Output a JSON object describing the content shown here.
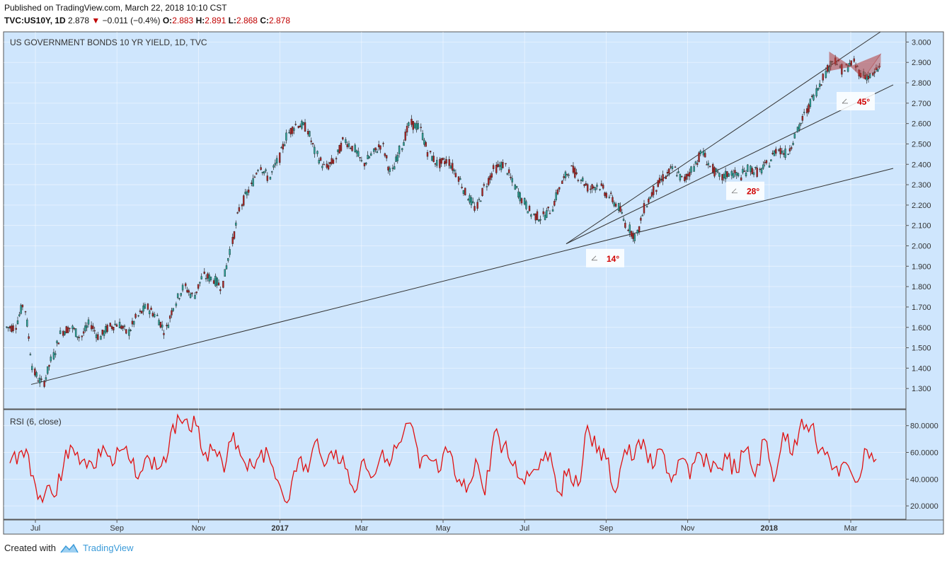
{
  "header": {
    "published": "Published on TradingView.com, March 22, 2018 10:10 CST",
    "symbol": "TVC:US10Y, 1D",
    "last": "2.878",
    "change": "−0.011 (−0.4%)",
    "o_label": "O:",
    "o_val": "2.883",
    "h_label": "H:",
    "h_val": "2.891",
    "l_label": "L:",
    "l_val": "2.868",
    "c_label": "C:",
    "c_val": "2.878"
  },
  "footer": {
    "created_with": "Created with",
    "brand": "TradingView"
  },
  "colors": {
    "background": "#cfe6fd",
    "up": "#26a69a",
    "down": "#b22222",
    "rsi": "#e01010",
    "pattern": "#b23a3a"
  },
  "chart_data": [
    {
      "type": "candlestick",
      "title": "US GOVERNMENT BONDS 10 YR YIELD, 1D, TVC",
      "ylim": [
        1.2,
        3.05
      ],
      "yticks": [
        "3.000",
        "2.900",
        "2.800",
        "2.700",
        "2.600",
        "2.500",
        "2.400",
        "2.300",
        "2.200",
        "2.100",
        "2.000",
        "1.900",
        "1.800",
        "1.700",
        "1.600",
        "1.500",
        "1.400",
        "1.300"
      ],
      "x_tick_labels": [
        "Jul",
        "Sep",
        "Nov",
        "2017",
        "Mar",
        "May",
        "Jul",
        "Sep",
        "Nov",
        "2018",
        "Mar"
      ],
      "grid": true,
      "series": [
        {
          "values": [
            1.6,
            1.72,
            1.38,
            1.32,
            1.45,
            1.58,
            1.6,
            1.55,
            1.62,
            1.55,
            1.6,
            1.62,
            1.57,
            1.65,
            1.7,
            1.66,
            1.58,
            1.72,
            1.8,
            1.75,
            1.85,
            1.84,
            1.8,
            2.0,
            2.2,
            2.28,
            2.4,
            2.33,
            2.42,
            2.55,
            2.6,
            2.58,
            2.45,
            2.38,
            2.42,
            2.52,
            2.48,
            2.4,
            2.45,
            2.5,
            2.35,
            2.48,
            2.6,
            2.58,
            2.45,
            2.4,
            2.42,
            2.35,
            2.25,
            2.18,
            2.3,
            2.38,
            2.4,
            2.3,
            2.22,
            2.15,
            2.14,
            2.18,
            2.3,
            2.38,
            2.34,
            2.28,
            2.3,
            2.25,
            2.2,
            2.1,
            2.04,
            2.2,
            2.28,
            2.34,
            2.38,
            2.32,
            2.38,
            2.46,
            2.38,
            2.33,
            2.36,
            2.34,
            2.38,
            2.36,
            2.4,
            2.48,
            2.45,
            2.55,
            2.65,
            2.75,
            2.84,
            2.92,
            2.86,
            2.9,
            2.84,
            2.83,
            2.88
          ]
        }
      ],
      "annotations": [
        {
          "type": "trendline",
          "label": "14°",
          "from": {
            "t": 3,
            "v": 1.32
          },
          "to": {
            "t": 104.5,
            "v": 2.38
          }
        },
        {
          "type": "trendline",
          "label": "28°",
          "from": {
            "t": 66,
            "v": 2.01
          },
          "to": {
            "t": 104.5,
            "v": 2.79
          }
        },
        {
          "type": "trendline",
          "label": "45°",
          "from": {
            "t": 66,
            "v": 2.01
          },
          "to": {
            "t": 103,
            "v": 3.05
          }
        },
        {
          "type": "pattern",
          "name": "broadening wedge"
        }
      ]
    },
    {
      "type": "line",
      "title": "RSI (6, close)",
      "ylim": [
        10,
        92
      ],
      "yticks": [
        "80.0000",
        "60.0000",
        "40.0000",
        "20.0000"
      ],
      "series": [
        {
          "values": [
            52,
            60,
            58,
            25,
            35,
            28,
            62,
            58,
            55,
            48,
            65,
            50,
            62,
            52,
            45,
            55,
            48,
            60,
            88,
            85,
            80,
            60,
            62,
            45,
            75,
            55,
            50,
            62,
            52,
            35,
            25,
            55,
            45,
            70,
            52,
            62,
            48,
            30,
            55,
            42,
            62,
            55,
            68,
            82,
            48,
            55,
            45,
            60,
            38,
            30,
            55,
            28,
            75,
            65,
            50,
            40,
            45,
            55,
            60,
            30,
            48,
            35,
            80,
            60,
            55,
            30,
            62,
            55,
            70,
            48,
            62,
            38,
            55,
            40,
            60,
            52,
            48,
            55,
            45,
            62,
            42,
            70,
            38,
            75,
            58,
            85,
            80,
            62,
            55,
            42,
            50,
            38,
            62,
            55
          ]
        }
      ]
    }
  ]
}
